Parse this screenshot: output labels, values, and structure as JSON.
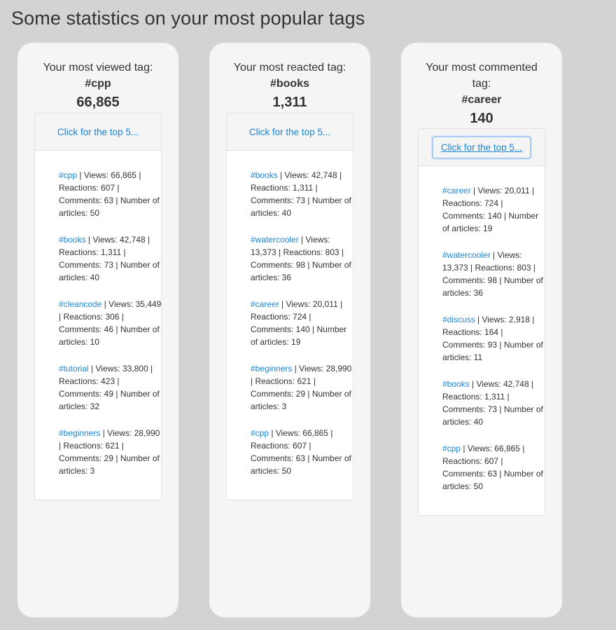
{
  "page": {
    "title": "Some statistics on your most popular tags"
  },
  "cards": [
    {
      "caption": "Your most viewed tag:",
      "tag": "#cpp",
      "value": "66,865",
      "toggle_label": "Click for the top 5...",
      "entries": [
        {
          "tag": "#cpp",
          "details": " | Views: 66,865 | Reactions: 607 | Comments: 63 | Number of articles: 50"
        },
        {
          "tag": "#books",
          "details": " | Views: 42,748 | Reactions: 1,311 | Comments: 73 | Number of articles: 40"
        },
        {
          "tag": "#cleancode",
          "details": " | Views: 35,449 | Reactions: 306 | Comments: 46 | Number of articles: 10"
        },
        {
          "tag": "#tutorial",
          "details": " | Views: 33,800 | Reactions: 423 | Comments: 49 | Number of articles: 32"
        },
        {
          "tag": "#beginners",
          "details": " | Views: 28,990 | Reactions: 621 | Comments: 29 | Number of articles: 3"
        }
      ]
    },
    {
      "caption": "Your most reacted tag:",
      "tag": "#books",
      "value": "1,311",
      "toggle_label": "Click for the top 5...",
      "entries": [
        {
          "tag": "#books",
          "details": " | Views: 42,748 | Reactions: 1,311 | Comments: 73 | Number of articles: 40"
        },
        {
          "tag": "#watercooler",
          "details": " | Views: 13,373 | Reactions: 803 | Comments: 98 | Number of articles: 36"
        },
        {
          "tag": "#career",
          "details": " | Views: 20,011 | Reactions: 724 | Comments: 140 | Number of articles: 19"
        },
        {
          "tag": "#beginners",
          "details": " | Views: 28,990 | Reactions: 621 | Comments: 29 | Number of articles: 3"
        },
        {
          "tag": "#cpp",
          "details": " | Views: 66,865 | Reactions: 607 | Comments: 63 | Number of articles: 50"
        }
      ]
    },
    {
      "caption": "Your most commented tag:",
      "tag": "#career",
      "value": "140",
      "toggle_label": "Click for the top 5...",
      "entries": [
        {
          "tag": "#career",
          "details": " | Views: 20,011 | Reactions: 724 | Comments: 140 | Number of articles: 19"
        },
        {
          "tag": "#watercooler",
          "details": " | Views: 13,373 | Reactions: 803 | Comments: 98 | Number of articles: 36"
        },
        {
          "tag": "#discuss",
          "details": " | Views: 2,918 | Reactions: 164 | Comments: 93 | Number of articles: 11"
        },
        {
          "tag": "#books",
          "details": " | Views: 42,748 | Reactions: 1,311 | Comments: 73 | Number of articles: 40"
        },
        {
          "tag": "#cpp",
          "details": " | Views: 66,865 | Reactions: 607 | Comments: 63 | Number of articles: 50"
        }
      ]
    }
  ]
}
